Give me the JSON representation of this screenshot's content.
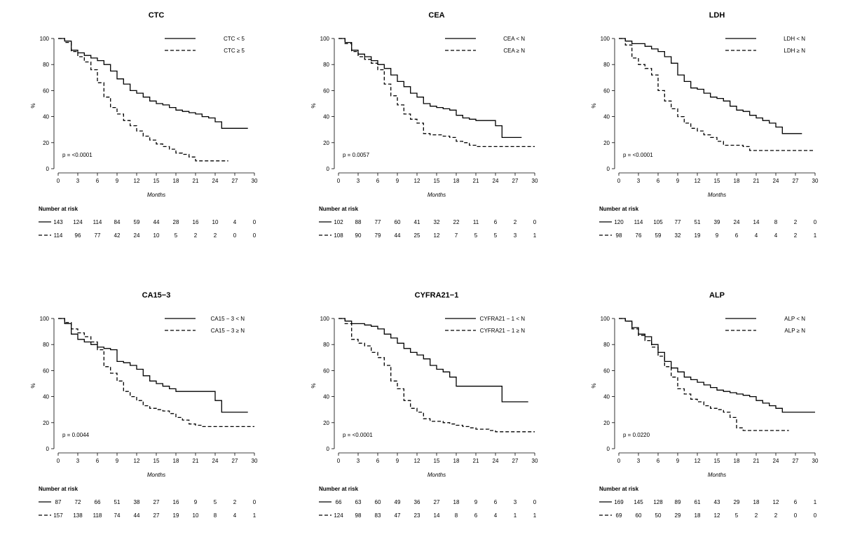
{
  "chart_data": [
    {
      "type": "line",
      "title": "CTC",
      "xlabel": "Months",
      "ylabel": "%",
      "xlim": [
        0,
        30
      ],
      "ylim": [
        0,
        100
      ],
      "xticks": [
        0,
        3,
        6,
        9,
        12,
        15,
        18,
        21,
        24,
        27,
        30
      ],
      "yticks": [
        0,
        20,
        40,
        60,
        80,
        100
      ],
      "p_value": "p = <0.0001",
      "risk_header": "Number at risk",
      "series": [
        {
          "name": "CTC < 5",
          "style": "solid",
          "x": [
            0,
            1,
            2,
            3,
            4,
            5,
            6,
            7,
            8,
            9,
            10,
            11,
            12,
            13,
            14,
            15,
            16,
            17,
            18,
            19,
            20,
            21,
            22,
            23,
            24,
            25,
            26,
            27,
            28,
            29
          ],
          "y": [
            100,
            98,
            91,
            89,
            87,
            85,
            83,
            80,
            75,
            69,
            65,
            60,
            58,
            55,
            52,
            50,
            49,
            47,
            45,
            44,
            43,
            42,
            40,
            39,
            36,
            31,
            31,
            31,
            31,
            31
          ],
          "at_risk": [
            143,
            124,
            114,
            84,
            59,
            44,
            28,
            16,
            10,
            4,
            0
          ]
        },
        {
          "name": "CTC ≥ 5",
          "style": "dashed",
          "x": [
            0,
            1,
            2,
            3,
            4,
            5,
            6,
            7,
            8,
            9,
            10,
            11,
            12,
            13,
            14,
            15,
            16,
            17,
            18,
            19,
            20,
            21,
            22,
            23,
            24,
            25,
            26
          ],
          "y": [
            100,
            97,
            90,
            86,
            82,
            76,
            66,
            55,
            47,
            42,
            37,
            33,
            29,
            25,
            22,
            19,
            17,
            15,
            12,
            11,
            9,
            6,
            6,
            6,
            6,
            6,
            6
          ],
          "at_risk": [
            114,
            96,
            77,
            42,
            24,
            10,
            5,
            2,
            2,
            0,
            0
          ]
        }
      ]
    },
    {
      "type": "line",
      "title": "CEA",
      "xlabel": "Months",
      "ylabel": "%",
      "xlim": [
        0,
        30
      ],
      "ylim": [
        0,
        100
      ],
      "xticks": [
        0,
        3,
        6,
        9,
        12,
        15,
        18,
        21,
        24,
        27,
        30
      ],
      "yticks": [
        0,
        20,
        40,
        60,
        80,
        100
      ],
      "p_value": "p = 0.0057",
      "risk_header": "Number at risk",
      "series": [
        {
          "name": "CEA < N",
          "style": "solid",
          "x": [
            0,
            1,
            2,
            3,
            4,
            5,
            6,
            7,
            8,
            9,
            10,
            11,
            12,
            13,
            14,
            15,
            16,
            17,
            18,
            19,
            20,
            21,
            22,
            23,
            24,
            25,
            26,
            27,
            28
          ],
          "y": [
            100,
            97,
            91,
            88,
            86,
            83,
            80,
            77,
            72,
            67,
            63,
            58,
            55,
            50,
            48,
            47,
            46,
            45,
            41,
            39,
            38,
            37,
            37,
            37,
            33,
            24,
            24,
            24,
            24
          ],
          "at_risk": [
            102,
            88,
            77,
            60,
            41,
            32,
            22,
            11,
            6,
            2,
            0
          ]
        },
        {
          "name": "CEA ≥ N",
          "style": "dashed",
          "x": [
            0,
            1,
            2,
            3,
            4,
            5,
            6,
            7,
            8,
            9,
            10,
            11,
            12,
            13,
            14,
            15,
            16,
            17,
            18,
            19,
            20,
            21,
            22,
            23,
            24,
            25,
            26,
            27,
            28,
            29,
            30
          ],
          "y": [
            100,
            96,
            90,
            86,
            84,
            81,
            76,
            65,
            56,
            49,
            42,
            38,
            35,
            27,
            26,
            26,
            25,
            24,
            21,
            20,
            18,
            17,
            17,
            17,
            17,
            17,
            17,
            17,
            17,
            17,
            17
          ],
          "at_risk": [
            108,
            90,
            79,
            44,
            25,
            12,
            7,
            5,
            5,
            3,
            1
          ]
        }
      ]
    },
    {
      "type": "line",
      "title": "LDH",
      "xlabel": "Months",
      "ylabel": "%",
      "xlim": [
        0,
        30
      ],
      "ylim": [
        0,
        100
      ],
      "xticks": [
        0,
        3,
        6,
        9,
        12,
        15,
        18,
        21,
        24,
        27,
        30
      ],
      "yticks": [
        0,
        20,
        40,
        60,
        80,
        100
      ],
      "p_value": "p = <0.0001",
      "risk_header": "Number at risk",
      "series": [
        {
          "name": "LDH < N",
          "style": "solid",
          "x": [
            0,
            1,
            2,
            3,
            4,
            5,
            6,
            7,
            8,
            9,
            10,
            11,
            12,
            13,
            14,
            15,
            16,
            17,
            18,
            19,
            20,
            21,
            22,
            23,
            24,
            25,
            26,
            27,
            28
          ],
          "y": [
            100,
            98,
            96,
            96,
            94,
            92,
            90,
            86,
            81,
            72,
            67,
            62,
            61,
            58,
            55,
            54,
            52,
            48,
            45,
            44,
            41,
            39,
            37,
            35,
            32,
            27,
            27,
            27,
            27
          ],
          "at_risk": [
            120,
            114,
            105,
            77,
            51,
            39,
            24,
            14,
            8,
            2,
            0
          ]
        },
        {
          "name": "LDH ≥ N",
          "style": "dashed",
          "x": [
            0,
            1,
            2,
            3,
            4,
            5,
            6,
            7,
            8,
            9,
            10,
            11,
            12,
            13,
            14,
            15,
            16,
            17,
            18,
            19,
            20,
            21,
            22,
            23,
            24,
            25,
            26,
            27,
            28,
            29,
            30
          ],
          "y": [
            100,
            95,
            85,
            80,
            77,
            72,
            60,
            52,
            46,
            40,
            35,
            31,
            29,
            26,
            24,
            21,
            18,
            18,
            18,
            17,
            14,
            14,
            14,
            14,
            14,
            14,
            14,
            14,
            14,
            14,
            14
          ],
          "at_risk": [
            98,
            76,
            59,
            32,
            19,
            9,
            6,
            4,
            4,
            2,
            1
          ]
        }
      ]
    },
    {
      "type": "line",
      "title": "CA15−3",
      "xlabel": "Months",
      "ylabel": "%",
      "xlim": [
        0,
        30
      ],
      "ylim": [
        0,
        100
      ],
      "xticks": [
        0,
        3,
        6,
        9,
        12,
        15,
        18,
        21,
        24,
        27,
        30
      ],
      "yticks": [
        0,
        20,
        40,
        60,
        80,
        100
      ],
      "p_value": "p = 0.0044",
      "risk_header": "Number at risk",
      "series": [
        {
          "name": "CA15 − 3 < N",
          "style": "solid",
          "x": [
            0,
            1,
            2,
            3,
            4,
            5,
            6,
            7,
            8,
            9,
            10,
            11,
            12,
            13,
            14,
            15,
            16,
            17,
            18,
            19,
            20,
            21,
            22,
            23,
            24,
            25,
            26,
            27,
            28,
            29
          ],
          "y": [
            100,
            96,
            88,
            84,
            82,
            80,
            78,
            77,
            76,
            67,
            66,
            64,
            61,
            56,
            52,
            50,
            48,
            46,
            44,
            44,
            44,
            44,
            44,
            44,
            37,
            28,
            28,
            28,
            28,
            28
          ],
          "at_risk": [
            87,
            72,
            66,
            51,
            38,
            27,
            16,
            9,
            5,
            2,
            0
          ]
        },
        {
          "name": "CA15 − 3 ≥ N",
          "style": "dashed",
          "x": [
            0,
            1,
            2,
            3,
            4,
            5,
            6,
            7,
            8,
            9,
            10,
            11,
            12,
            13,
            14,
            15,
            16,
            17,
            18,
            19,
            20,
            21,
            22,
            23,
            24,
            25,
            26,
            27,
            28,
            29,
            30
          ],
          "y": [
            100,
            97,
            92,
            89,
            86,
            82,
            76,
            63,
            58,
            52,
            44,
            40,
            37,
            33,
            31,
            30,
            29,
            27,
            24,
            22,
            19,
            18,
            17,
            17,
            17,
            17,
            17,
            17,
            17,
            17,
            17
          ],
          "at_risk": [
            157,
            138,
            118,
            74,
            44,
            27,
            19,
            10,
            8,
            4,
            1
          ]
        }
      ]
    },
    {
      "type": "line",
      "title": "CYFRA21−1",
      "xlabel": "Months",
      "ylabel": "%",
      "xlim": [
        0,
        30
      ],
      "ylim": [
        0,
        100
      ],
      "xticks": [
        0,
        3,
        6,
        9,
        12,
        15,
        18,
        21,
        24,
        27,
        30
      ],
      "yticks": [
        0,
        20,
        40,
        60,
        80,
        100
      ],
      "p_value": "p = <0.0001",
      "risk_header": "Number at risk",
      "series": [
        {
          "name": "CYFRA21 − 1 < N",
          "style": "solid",
          "x": [
            0,
            1,
            2,
            3,
            4,
            5,
            6,
            7,
            8,
            9,
            10,
            11,
            12,
            13,
            14,
            15,
            16,
            17,
            18,
            19,
            20,
            21,
            22,
            23,
            24,
            25,
            26,
            27,
            28,
            29
          ],
          "y": [
            100,
            98,
            96,
            96,
            95,
            94,
            92,
            88,
            85,
            81,
            77,
            74,
            72,
            69,
            64,
            61,
            59,
            55,
            48,
            48,
            48,
            48,
            48,
            48,
            48,
            36,
            36,
            36,
            36,
            36
          ],
          "at_risk": [
            66,
            63,
            60,
            49,
            36,
            27,
            18,
            9,
            6,
            3,
            0
          ]
        },
        {
          "name": "CYFRA21 − 1 ≥ N",
          "style": "dashed",
          "x": [
            0,
            1,
            2,
            3,
            4,
            5,
            6,
            7,
            8,
            9,
            10,
            11,
            12,
            13,
            14,
            15,
            16,
            17,
            18,
            19,
            20,
            21,
            22,
            23,
            24,
            25,
            26,
            27,
            28,
            29,
            30
          ],
          "y": [
            100,
            96,
            84,
            81,
            79,
            74,
            70,
            64,
            52,
            46,
            37,
            31,
            28,
            23,
            21,
            21,
            20,
            19,
            18,
            17,
            16,
            15,
            15,
            14,
            13,
            13,
            13,
            13,
            13,
            13,
            13
          ],
          "at_risk": [
            124,
            98,
            83,
            47,
            23,
            14,
            8,
            6,
            4,
            1,
            1
          ]
        }
      ]
    },
    {
      "type": "line",
      "title": "ALP",
      "xlabel": "Months",
      "ylabel": "%",
      "xlim": [
        0,
        30
      ],
      "ylim": [
        0,
        100
      ],
      "xticks": [
        0,
        3,
        6,
        9,
        12,
        15,
        18,
        21,
        24,
        27,
        30
      ],
      "yticks": [
        0,
        20,
        40,
        60,
        80,
        100
      ],
      "p_value": "p = 0.0220",
      "risk_header": "Number at risk",
      "series": [
        {
          "name": "ALP < N",
          "style": "solid",
          "x": [
            0,
            1,
            2,
            3,
            4,
            5,
            6,
            7,
            8,
            9,
            10,
            11,
            12,
            13,
            14,
            15,
            16,
            17,
            18,
            19,
            20,
            21,
            22,
            23,
            24,
            25,
            26,
            27,
            28,
            29,
            30
          ],
          "y": [
            100,
            98,
            93,
            88,
            86,
            80,
            74,
            67,
            62,
            59,
            55,
            53,
            51,
            49,
            47,
            45,
            44,
            43,
            42,
            41,
            40,
            37,
            35,
            33,
            31,
            28,
            28,
            28,
            28,
            28,
            28
          ],
          "at_risk": [
            169,
            145,
            128,
            89,
            61,
            43,
            29,
            18,
            12,
            6,
            1
          ]
        },
        {
          "name": "ALP ≥ N",
          "style": "dashed",
          "x": [
            0,
            1,
            2,
            3,
            4,
            5,
            6,
            7,
            8,
            9,
            10,
            11,
            12,
            13,
            14,
            15,
            16,
            17,
            18,
            19,
            20,
            21,
            22,
            23,
            24,
            25,
            26
          ],
          "y": [
            100,
            98,
            92,
            87,
            83,
            78,
            71,
            63,
            55,
            46,
            42,
            38,
            36,
            33,
            31,
            30,
            28,
            24,
            16,
            14,
            14,
            14,
            14,
            14,
            14,
            14,
            14
          ],
          "at_risk": [
            69,
            60,
            50,
            29,
            18,
            12,
            5,
            2,
            2,
            0,
            0
          ]
        }
      ]
    }
  ]
}
